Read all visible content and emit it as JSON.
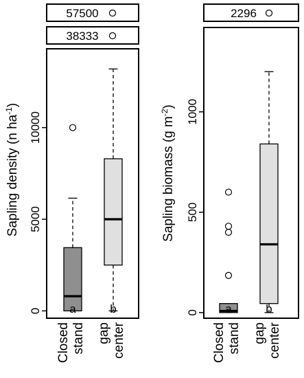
{
  "chart_data": [
    {
      "type": "boxplot",
      "ylabel": "Sapling density (n ha",
      "ylabel_sup": "-1",
      "ylabel_suffix": ")",
      "ylim": [
        -400,
        14300
      ],
      "yticks": [
        "0",
        "5000",
        "10000"
      ],
      "ytick_values": [
        0,
        5000,
        10000
      ],
      "categories": [
        "Closed\nstand",
        "gap\ncenter"
      ],
      "group_letters": [
        "a",
        "b"
      ],
      "box_colors": [
        "#8f8f8f",
        "#e0e0e0"
      ],
      "boxes": [
        {
          "name": "Closed stand",
          "whisker_low": 0,
          "q1": 0,
          "median": 800,
          "q3": 3450,
          "whisker_high": 6150,
          "outliers": [
            10000
          ]
        },
        {
          "name": "gap center",
          "whisker_low": 0,
          "q1": 2500,
          "median": 5000,
          "q3": 8300,
          "whisker_high": 13200,
          "outliers": []
        }
      ],
      "off_scale_outliers": [
        "57500",
        "38333"
      ]
    },
    {
      "type": "boxplot",
      "ylabel": "Sapling biomass (g m",
      "ylabel_sup": "-2",
      "ylabel_suffix": ")",
      "ylim": [
        -28,
        1420
      ],
      "yticks": [
        "0",
        "500",
        "1000"
      ],
      "ytick_values": [
        0,
        500,
        1000
      ],
      "categories": [
        "Closed\nstand",
        "gap\ncenter"
      ],
      "group_letters": [
        "a",
        "b"
      ],
      "box_colors": [
        "#8f8f8f",
        "#e0e0e0"
      ],
      "boxes": [
        {
          "name": "Closed stand",
          "whisker_low": 0,
          "q1": 0,
          "median": 8,
          "q3": 45,
          "whisker_high": 45,
          "outliers": [
            185,
            400,
            430,
            600
          ]
        },
        {
          "name": "gap center",
          "whisker_low": 0,
          "q1": 45,
          "median": 340,
          "q3": 840,
          "whisker_high": 1200,
          "outliers": []
        }
      ],
      "off_scale_outliers": [
        "2296"
      ]
    }
  ]
}
